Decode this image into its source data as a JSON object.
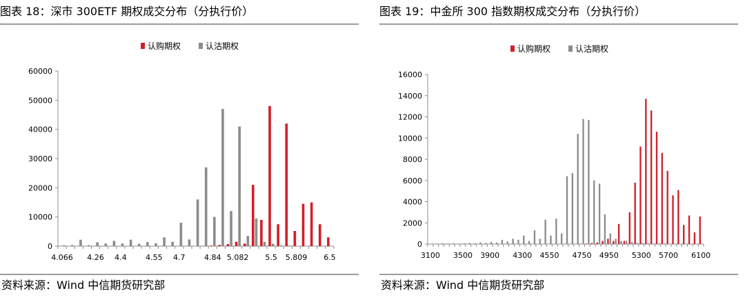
{
  "colors": {
    "call": "#d0202a",
    "put": "#8c8c8c",
    "axis": "#8c8c8c",
    "rule": "#9c9c9c"
  },
  "chart_data": [
    {
      "type": "bar",
      "title": "图表 18：深市 300ETF 期权成交分布（分执行价）",
      "source": "资料来源：Wind 中信期货研究部",
      "legend": {
        "placement": "top-center",
        "labels": [
          "认购期权",
          "认沽期权"
        ]
      },
      "ylim": [
        0,
        60000
      ],
      "yticks": [
        0,
        10000,
        20000,
        30000,
        40000,
        50000,
        60000
      ],
      "x_tick_labels": [
        "4.066",
        "4.26",
        "4.4",
        "4.55",
        "4.7",
        "4.84",
        "5.082",
        "5.5",
        "5.809",
        "6.5"
      ],
      "xlabel": "",
      "ylabel": "",
      "grid": false,
      "series": [
        {
          "name": "认购期权",
          "values": [
            0,
            0,
            0,
            0,
            0,
            0,
            0,
            0,
            0,
            0,
            0,
            0,
            0,
            0,
            0,
            0,
            0,
            100,
            200,
            400,
            700,
            1500,
            900,
            21000,
            9000,
            48000,
            7500,
            42000,
            5200,
            14500,
            15000,
            7500,
            3000
          ]
        },
        {
          "name": "认沽期权",
          "values": [
            300,
            400,
            2200,
            300,
            1300,
            900,
            1800,
            900,
            2200,
            800,
            1400,
            1000,
            3000,
            1500,
            8000,
            2300,
            16000,
            27000,
            10000,
            47000,
            12000,
            41000,
            3500,
            9500,
            1500,
            800,
            300,
            200,
            0,
            0,
            0,
            0,
            0
          ]
        }
      ]
    },
    {
      "type": "bar",
      "title": "图表 19：中金所 300 指数期权成交分布（分执行价）",
      "source": "资料来源：Wind 中信期货研究部",
      "legend": {
        "placement": "top-center",
        "labels": [
          "认购期权",
          "认沽期权"
        ]
      },
      "ylim": [
        0,
        16000
      ],
      "yticks": [
        0,
        2000,
        4000,
        6000,
        8000,
        10000,
        12000,
        14000,
        16000
      ],
      "x_tick_labels": [
        "3100",
        "3500",
        "3900",
        "4300",
        "4550",
        "4750",
        "4950",
        "5300",
        "5700",
        "6100"
      ],
      "xlabel": "",
      "ylabel": "",
      "grid": false,
      "series": [
        {
          "name": "认购期权",
          "values": [
            0,
            0,
            0,
            0,
            0,
            0,
            0,
            0,
            0,
            0,
            0,
            0,
            0,
            0,
            0,
            0,
            0,
            0,
            0,
            0,
            0,
            0,
            0,
            0,
            0,
            0,
            0,
            0,
            0,
            50,
            100,
            150,
            300,
            500,
            300,
            1900,
            300,
            3000,
            5800,
            9200,
            13700,
            12600,
            10600,
            8600,
            6900,
            4600,
            5100,
            1800,
            2700,
            1100,
            2600
          ]
        },
        {
          "name": "认沽期权",
          "values": [
            50,
            50,
            80,
            50,
            80,
            50,
            80,
            100,
            80,
            150,
            100,
            200,
            150,
            400,
            250,
            500,
            400,
            800,
            300,
            1300,
            500,
            2300,
            800,
            2400,
            1000,
            6400,
            6700,
            10400,
            11800,
            11700,
            6000,
            5700,
            2800,
            1000,
            500,
            300,
            300,
            200,
            100,
            100,
            80,
            50,
            50,
            50,
            30,
            0,
            0,
            0,
            0,
            0,
            0
          ]
        }
      ]
    }
  ]
}
